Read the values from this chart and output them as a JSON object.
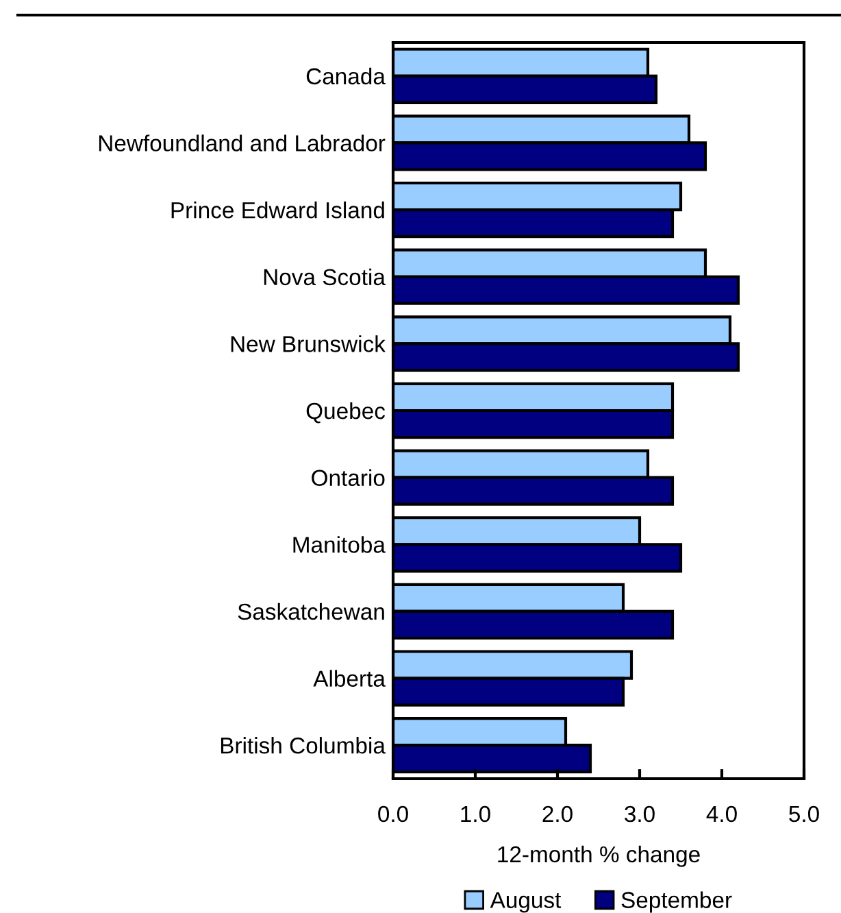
{
  "chart_data": {
    "type": "bar",
    "orientation": "horizontal",
    "xlabel": "12-month % change",
    "categories": [
      "Canada",
      "Newfoundland and Labrador",
      "Prince Edward Island",
      "Nova Scotia",
      "New Brunswick",
      "Quebec",
      "Ontario",
      "Manitoba",
      "Saskatchewan",
      "Alberta",
      "British Columbia"
    ],
    "series": [
      {
        "name": "August",
        "color": "#99ccff",
        "values": [
          3.1,
          3.6,
          3.5,
          3.8,
          4.1,
          3.4,
          3.1,
          3.0,
          2.8,
          2.9,
          2.1
        ]
      },
      {
        "name": "September",
        "color": "#000080",
        "values": [
          3.2,
          3.8,
          3.4,
          4.2,
          4.2,
          3.4,
          3.4,
          3.5,
          3.4,
          2.8,
          2.4
        ]
      }
    ],
    "xlim": [
      0,
      5
    ],
    "xticks": [
      {
        "value": 0,
        "label": "0.0"
      },
      {
        "value": 1,
        "label": "1.0"
      },
      {
        "value": 2,
        "label": "2.0"
      },
      {
        "value": 3,
        "label": "3.0"
      },
      {
        "value": 4,
        "label": "4.0"
      },
      {
        "value": 5,
        "label": "5.0"
      }
    ],
    "grid": false,
    "legend": "bottom"
  }
}
